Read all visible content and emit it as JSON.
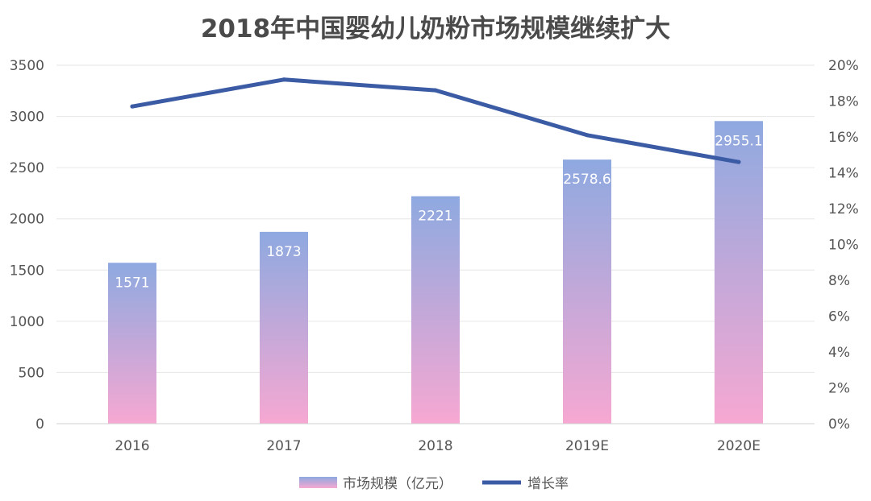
{
  "chart_data": {
    "type": "bar",
    "title": "2018年中国婴幼儿奶粉市场规模继续扩大",
    "categories": [
      "2016",
      "2017",
      "2018",
      "2019E",
      "2020E"
    ],
    "series": [
      {
        "name": "市场规模（亿元）",
        "type": "bar",
        "axis": "left",
        "values": [
          1571,
          1873,
          2221,
          2578.6,
          2955.1
        ],
        "labels": [
          "1571",
          "1873",
          "2221",
          "2578.6",
          "2955.1"
        ],
        "gradient": [
          "#8ea9e0",
          "#f6a8d2"
        ]
      },
      {
        "name": "增长率",
        "type": "line",
        "axis": "right",
        "values": [
          0.177,
          0.192,
          0.186,
          0.161,
          0.146
        ],
        "color": "#3b5ba5"
      }
    ],
    "yleft": {
      "ylim": [
        0,
        3500
      ],
      "ticks": [
        "0",
        "500",
        "1000",
        "1500",
        "2000",
        "2500",
        "3000",
        "3500"
      ]
    },
    "yright": {
      "ylim": [
        0,
        0.2
      ],
      "ticks": [
        "0%",
        "2%",
        "4%",
        "6%",
        "8%",
        "10%",
        "12%",
        "14%",
        "16%",
        "18%",
        "20%"
      ]
    },
    "grid": true,
    "legend_position": "bottom"
  }
}
